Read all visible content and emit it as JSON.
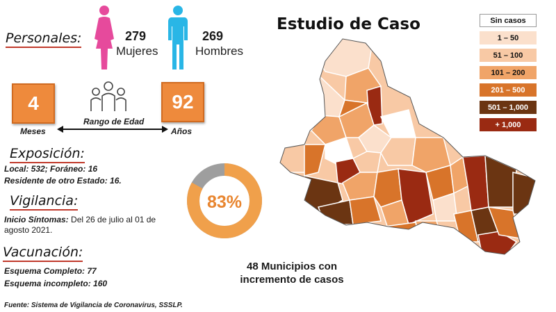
{
  "title": "Estudio de Caso",
  "personales": {
    "heading": "Personales:",
    "mujeres_count": "279",
    "mujeres_label": "Mujeres",
    "hombres_count": "269",
    "hombres_label": "Hombres"
  },
  "edad": {
    "min_value": "4",
    "min_unit": "Meses",
    "max_value": "92",
    "max_unit": "Años",
    "range_label": "Rango de Edad"
  },
  "exposicion": {
    "heading": "Exposición:",
    "line1": "Local:  532; Foráneo: 16",
    "line2": "Residente de otro Estado: 16."
  },
  "vigilancia": {
    "heading": "Vigilancia:",
    "sintomas_label": "Inicio Síntomas:",
    "sintomas_text": " Del 26 de julio al 01 de agosto 2021."
  },
  "vacunacion": {
    "heading": "Vacunación:",
    "line1": "Esquema Completo: 77",
    "line2": "Esquema incompleto: 160"
  },
  "donut": {
    "percent_label": "83%",
    "value": 0.83,
    "color": "#f0a04b",
    "track": "#9e9e9e"
  },
  "municipios": {
    "line1": "48 Municipios con",
    "line2": "incremento de casos"
  },
  "fuente": "Fuente: Sistema de Vigilancia de Coronavirus, SSSLP.",
  "legend": [
    {
      "label": "Sin casos",
      "color": "#ffffff",
      "text_color": "#111111"
    },
    {
      "label": "1 – 50",
      "color": "#fbe0cc",
      "text_color": "#111111"
    },
    {
      "label": "51 – 100",
      "color": "#f8c9a5",
      "text_color": "#111111"
    },
    {
      "label": "101 – 200",
      "color": "#f0a468",
      "text_color": "#111111"
    },
    {
      "label": "201 – 500",
      "color": "#d8742a",
      "text_color": "#ffffff"
    },
    {
      "label": "501 – 1,000",
      "color": "#6b3512",
      "text_color": "#ffffff"
    },
    {
      "label": "+ 1,000",
      "color": "#9a2a12",
      "text_color": "#ffffff"
    }
  ],
  "colors": {
    "woman": "#e64a9c",
    "man": "#29b6e6",
    "accent_red": "#c0392b",
    "orange": "#ee8a3c"
  }
}
